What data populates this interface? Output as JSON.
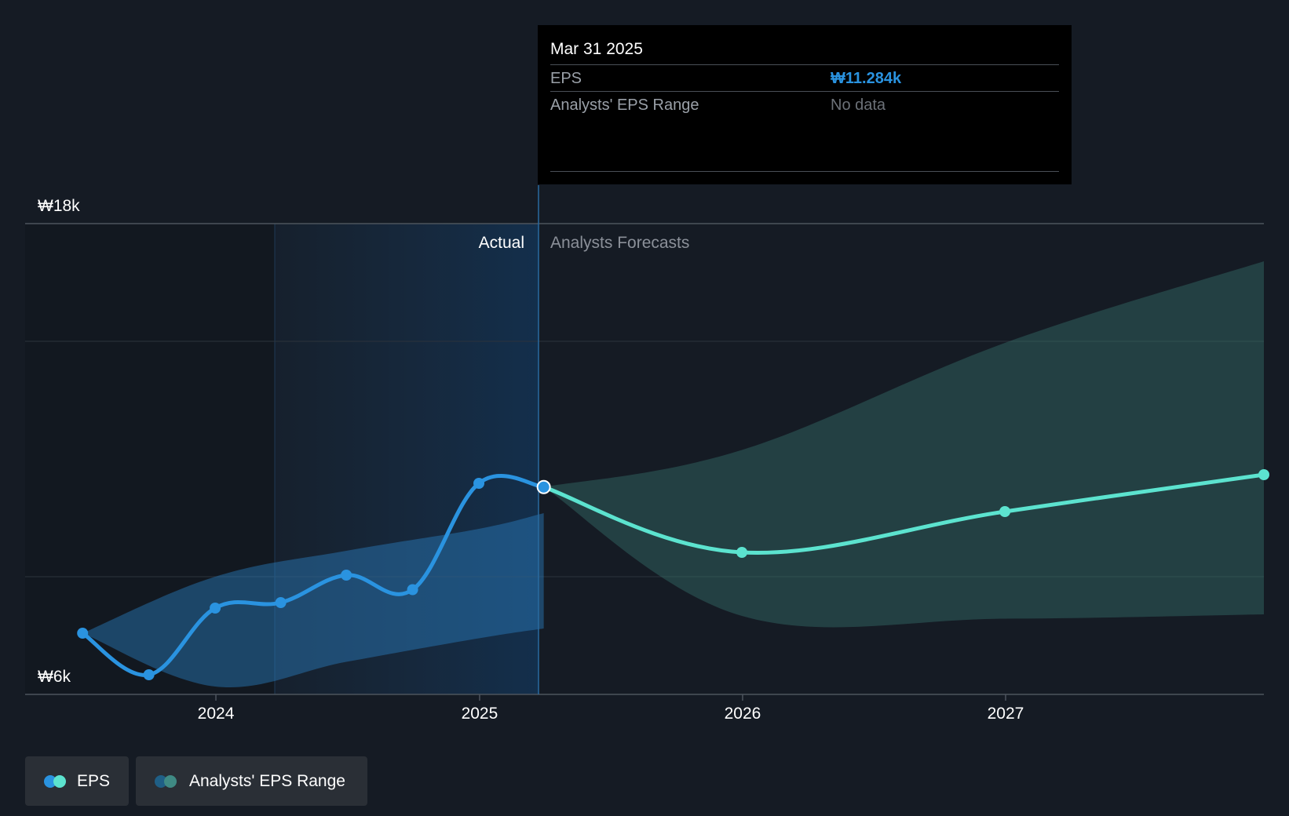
{
  "chart_data": {
    "type": "line",
    "y_axis": {
      "unit": "₩",
      "ylim": [
        6000,
        18000
      ],
      "ticks": [
        "₩18k",
        "₩6k"
      ],
      "grid": true
    },
    "x_axis": {
      "ticks": [
        "2024",
        "2025",
        "2026",
        "2027"
      ]
    },
    "regions": {
      "actual_label": "Actual",
      "forecast_label": "Analysts Forecasts"
    },
    "series": [
      {
        "name": "EPS",
        "color": "#2a93e0",
        "points": [
          {
            "x": "2023-06-30",
            "y": 7560
          },
          {
            "x": "2023-09-30",
            "y": 6500
          },
          {
            "x": "2023-12-31",
            "y": 8200
          },
          {
            "x": "2024-03-31",
            "y": 8340
          },
          {
            "x": "2024-06-30",
            "y": 9040
          },
          {
            "x": "2024-09-30",
            "y": 8670
          },
          {
            "x": "2024-12-31",
            "y": 11380
          },
          {
            "x": "2025-03-31",
            "y": 11284
          }
        ]
      },
      {
        "name": "EPS forecast",
        "color": "#5ce3cf",
        "points": [
          {
            "x": "2025-03-31",
            "y": 11284
          },
          {
            "x": "2025-12-31",
            "y": 9620
          },
          {
            "x": "2026-12-31",
            "y": 10660
          },
          {
            "x": "2027-12-31",
            "y": 11600
          }
        ]
      }
    ],
    "ranges": [
      {
        "name": "Analysts' EPS Range (past)",
        "color": "#2a93e0",
        "upper": [
          {
            "x": "2023-06-30",
            "y": 7560
          },
          {
            "x": "2023-12-31",
            "y": 9000
          },
          {
            "x": "2024-06-30",
            "y": 9660
          },
          {
            "x": "2024-12-31",
            "y": 10220
          },
          {
            "x": "2025-03-31",
            "y": 10620
          }
        ],
        "lower": [
          {
            "x": "2023-06-30",
            "y": 7560
          },
          {
            "x": "2023-12-31",
            "y": 6200
          },
          {
            "x": "2024-06-30",
            "y": 6830
          },
          {
            "x": "2024-12-31",
            "y": 7430
          },
          {
            "x": "2025-03-31",
            "y": 7680
          }
        ]
      },
      {
        "name": "Analysts' EPS Range (forecast)",
        "color": "#5ce3cf",
        "upper": [
          {
            "x": "2025-03-31",
            "y": 11284
          },
          {
            "x": "2025-12-31",
            "y": 12230
          },
          {
            "x": "2026-12-31",
            "y": 14960
          },
          {
            "x": "2027-12-31",
            "y": 17040
          }
        ],
        "lower": [
          {
            "x": "2025-03-31",
            "y": 11284
          },
          {
            "x": "2025-12-31",
            "y": 8000
          },
          {
            "x": "2026-12-31",
            "y": 7930
          },
          {
            "x": "2027-12-31",
            "y": 8040
          }
        ]
      }
    ]
  },
  "tooltip": {
    "date": "Mar 31 2025",
    "rows": [
      {
        "label": "EPS",
        "value": "₩11.284k"
      },
      {
        "label": "Analysts' EPS Range",
        "value": "No data"
      }
    ]
  },
  "legend": [
    {
      "label": "EPS",
      "colors": [
        "#2a93e0",
        "#5ce3cf"
      ]
    },
    {
      "label": "Analysts' EPS Range",
      "colors": [
        "#1f5f86",
        "#3f8a84"
      ]
    }
  ]
}
